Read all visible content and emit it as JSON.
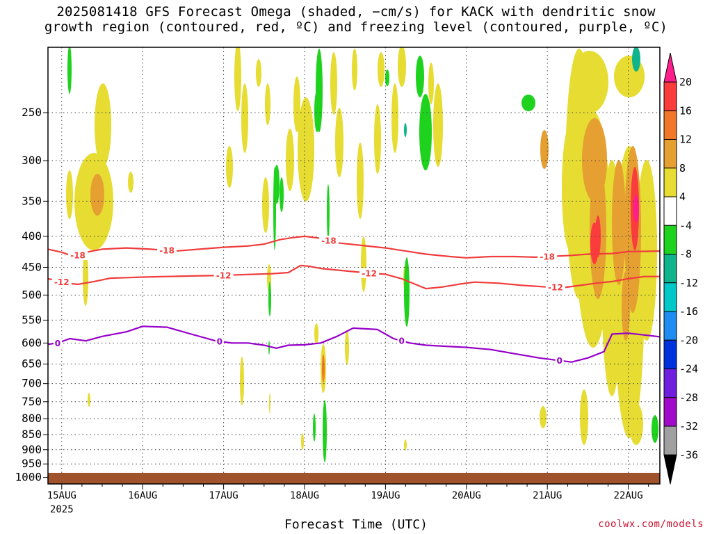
{
  "title_line1": "2025081418 GFS Forecast Omega (shaded, −cm/s) for KACK with dendritic snow",
  "title_line2": "growth region (contoured, red, ºC) and freezing level (contoured, purple, ºC)",
  "xaxis_title": "Forecast Time (UTC)",
  "credit": "coolwx.com/models",
  "chart_data": {
    "type": "heatmap",
    "title": "2025081418 GFS Forecast Omega (shaded, −cm/s) for KACK with dendritic snow growth region (contoured, red, ºC) and freezing level (contoured, purple, ºC)",
    "xlabel": "Forecast Time (UTC)",
    "ylabel": "",
    "x_ticks": [
      "15AUG",
      "16AUG",
      "17AUG",
      "18AUG",
      "19AUG",
      "20AUG",
      "21AUG",
      "22AUG"
    ],
    "x_year_label": "2025",
    "xlim_days": [
      14.83,
      22.39
    ],
    "y_ticks": [
      250,
      300,
      350,
      400,
      450,
      500,
      550,
      600,
      650,
      700,
      750,
      800,
      850,
      900,
      950,
      1000
    ],
    "ylim_hpa": [
      195,
      1025
    ],
    "y_scale": "log-pressure",
    "surface_pressure_hpa": 1012,
    "grid": true,
    "colorbar": {
      "levels": [
        20,
        16,
        12,
        8,
        4,
        -4,
        -8,
        -12,
        -16,
        -20,
        -24,
        -28,
        -32,
        -36
      ],
      "colors": [
        "#ff1e8c",
        "#fa3c3c",
        "#f07828",
        "#e6a032",
        "#e6dc32",
        "#ffffff",
        "#1ed21e",
        "#0fb48c",
        "#00c8c8",
        "#1e8cf0",
        "#0032dc",
        "#6e1edc",
        "#a00ac8",
        "#a0a0a0",
        "#000000"
      ]
    },
    "contours": [
      {
        "name": "dendritic -18",
        "label": "-18",
        "color": "#f03c3c",
        "label_days": [
          15.2,
          16.3,
          18.3,
          21.0
        ],
        "days": [
          14.83,
          15.0,
          15.15,
          15.3,
          15.5,
          15.8,
          16.1,
          16.4,
          16.7,
          17.0,
          17.3,
          17.5,
          17.7,
          17.85,
          18.0,
          18.2,
          18.4,
          18.7,
          19.0,
          19.2,
          19.5,
          19.8,
          20.0,
          20.3,
          20.6,
          20.85,
          21.0,
          21.3,
          21.5,
          21.8,
          22.0,
          22.39
        ],
        "hpa": [
          420,
          425,
          432,
          425,
          420,
          418,
          420,
          423,
          420,
          417,
          415,
          412,
          405,
          402,
          400,
          403,
          410,
          414,
          418,
          422,
          428,
          432,
          434,
          432,
          432,
          433,
          432,
          430,
          428,
          427,
          424,
          423
        ]
      },
      {
        "name": "dendritic -12",
        "label": "-12",
        "color": "#f03c3c",
        "label_days": [
          15.0,
          17.0,
          18.8,
          21.1
        ],
        "days": [
          14.83,
          14.9,
          15.05,
          15.2,
          15.4,
          15.6,
          15.8,
          16.0,
          16.3,
          16.6,
          17.0,
          17.2,
          17.4,
          17.6,
          17.8,
          17.95,
          18.05,
          18.2,
          18.5,
          18.8,
          19.0,
          19.2,
          19.5,
          19.7,
          19.9,
          20.1,
          20.4,
          20.7,
          21.0,
          21.2,
          21.4,
          21.6,
          21.8,
          22.0,
          22.2,
          22.39
        ],
        "hpa": [
          470,
          472,
          478,
          480,
          475,
          469,
          468,
          467,
          466,
          465,
          464,
          463,
          462,
          461,
          459,
          447,
          448,
          452,
          456,
          460,
          462,
          470,
          488,
          485,
          480,
          476,
          478,
          482,
          485,
          486,
          482,
          478,
          475,
          470,
          466,
          466
        ]
      },
      {
        "name": "freezing level 0",
        "label": "0",
        "color": "#9600c8",
        "label_days": [
          14.95,
          16.95,
          19.2,
          21.15
        ],
        "days": [
          14.83,
          14.95,
          15.1,
          15.3,
          15.5,
          15.8,
          16.0,
          16.3,
          16.6,
          16.9,
          17.1,
          17.3,
          17.5,
          17.65,
          17.8,
          18.0,
          18.2,
          18.4,
          18.6,
          18.9,
          19.1,
          19.3,
          19.5,
          19.8,
          20.0,
          20.3,
          20.6,
          20.9,
          21.1,
          21.3,
          21.5,
          21.7,
          21.8,
          22.0,
          22.2,
          22.39
        ],
        "hpa": [
          603,
          600,
          590,
          595,
          585,
          575,
          563,
          565,
          580,
          595,
          600,
          600,
          605,
          612,
          605,
          604,
          600,
          585,
          567,
          570,
          590,
          600,
          605,
          608,
          610,
          615,
          625,
          635,
          640,
          645,
          635,
          620,
          580,
          578,
          582,
          586
        ]
      }
    ]
  }
}
